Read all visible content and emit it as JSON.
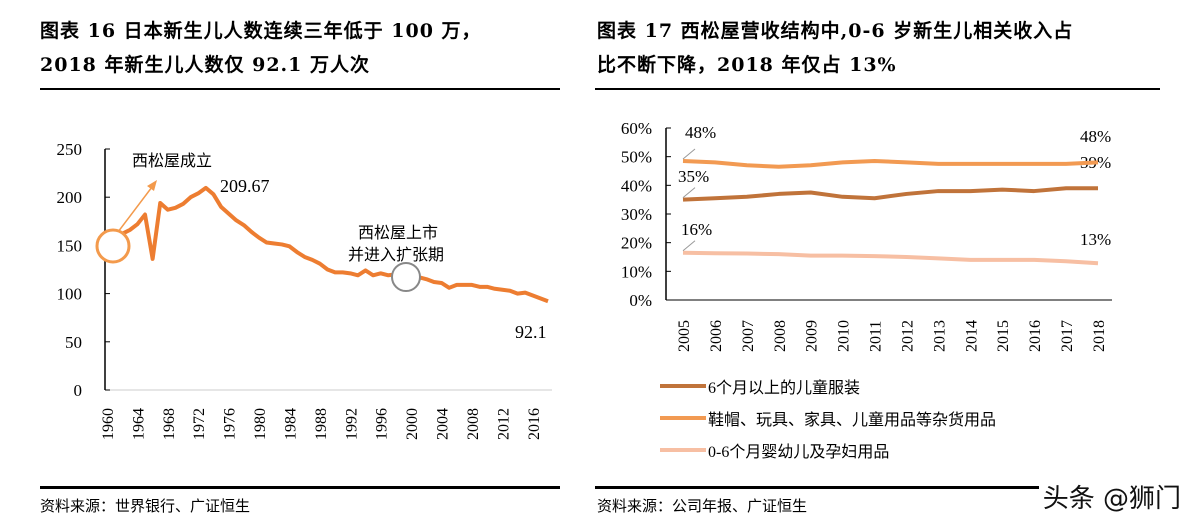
{
  "left": {
    "title_line1": "图表 16 日本新生儿人数连续三年低于 100 万，",
    "title_line2": "2018 年新生儿人数仅 92.1 万人次",
    "source": "资料来源：世界银行、广证恒生"
  },
  "right": {
    "title_line1": "图表 17 西松屋营收结构中,0-6 岁新生儿相关收入占",
    "title_line2": "比不断下降，2018 年仅占 13%",
    "source": "资料来源：公司年报、广证恒生"
  },
  "watermark": "头条 @狮门",
  "chart_data": [
    {
      "type": "line",
      "ylim": [
        0,
        250
      ],
      "yticks": [
        0,
        50,
        100,
        150,
        200,
        250
      ],
      "xtick_labels": [
        "1960",
        "1964",
        "1968",
        "1972",
        "1976",
        "1980",
        "1984",
        "1988",
        "1992",
        "1996",
        "2000",
        "2004",
        "2008",
        "2012",
        "2016"
      ],
      "x": [
        1960,
        1961,
        1962,
        1963,
        1964,
        1965,
        1966,
        1967,
        1968,
        1969,
        1970,
        1971,
        1972,
        1973,
        1974,
        1975,
        1976,
        1977,
        1978,
        1979,
        1980,
        1981,
        1982,
        1983,
        1984,
        1985,
        1986,
        1987,
        1988,
        1989,
        1990,
        1991,
        1992,
        1993,
        1994,
        1995,
        1996,
        1997,
        1998,
        1999,
        2000,
        2001,
        2002,
        2003,
        2004,
        2005,
        2006,
        2007,
        2008,
        2009,
        2010,
        2011,
        2012,
        2013,
        2014,
        2015,
        2016,
        2017,
        2018
      ],
      "values": [
        160,
        159,
        162,
        166,
        172,
        182,
        136,
        194,
        187,
        189,
        193,
        200,
        204,
        209.67,
        203,
        190,
        183,
        176,
        171,
        164,
        158,
        153,
        152,
        151,
        149,
        143,
        138,
        135,
        131,
        125,
        122,
        122,
        121,
        119,
        124,
        119,
        121,
        119,
        120,
        118,
        119,
        117,
        115,
        112,
        111,
        106,
        109,
        109,
        109,
        107,
        107,
        105,
        104,
        103,
        100,
        101,
        98,
        95,
        92.1
      ],
      "color": "#ED7D31",
      "annotations": [
        {
          "text": "西松屋成立",
          "x": 1960
        },
        {
          "text": "209.67",
          "x": 1973
        },
        {
          "text": "西松屋上市",
          "text2": "并进入扩张期",
          "x": 1999
        },
        {
          "text": "92.1",
          "x": 2018
        }
      ]
    },
    {
      "type": "line",
      "ylim": [
        0,
        60
      ],
      "yticks": [
        "0%",
        "10%",
        "20%",
        "30%",
        "40%",
        "50%",
        "60%"
      ],
      "categories": [
        "2005",
        "2006",
        "2007",
        "2008",
        "2009",
        "2010",
        "2011",
        "2012",
        "2013",
        "2014",
        "2015",
        "2016",
        "2017",
        "2018"
      ],
      "legend_position": "bottom",
      "series": [
        {
          "name": "6个月以上的儿童服装",
          "color": "#C0733A",
          "values": [
            35,
            35.5,
            36,
            37,
            37.5,
            36,
            35.5,
            37,
            38,
            38,
            38.5,
            38,
            39,
            39
          ],
          "start_label": "35%",
          "end_label": "39%"
        },
        {
          "name": "鞋帽、玩具、家具、儿童用品等杂货用品",
          "color": "#F29A52",
          "values": [
            48.5,
            48,
            47,
            46.5,
            47,
            48,
            48.5,
            48,
            47.5,
            47.5,
            47.5,
            47.5,
            47.5,
            48
          ],
          "start_label": "48%",
          "end_label": "48%"
        },
        {
          "name": "0-6个月婴幼儿及孕妇用品",
          "color": "#F7BFA3",
          "values": [
            16.5,
            16.3,
            16.2,
            16,
            15.5,
            15.5,
            15.3,
            15,
            14.5,
            14,
            14,
            14,
            13.5,
            12.8
          ],
          "start_label": "16%",
          "end_label": "13%"
        }
      ]
    }
  ]
}
